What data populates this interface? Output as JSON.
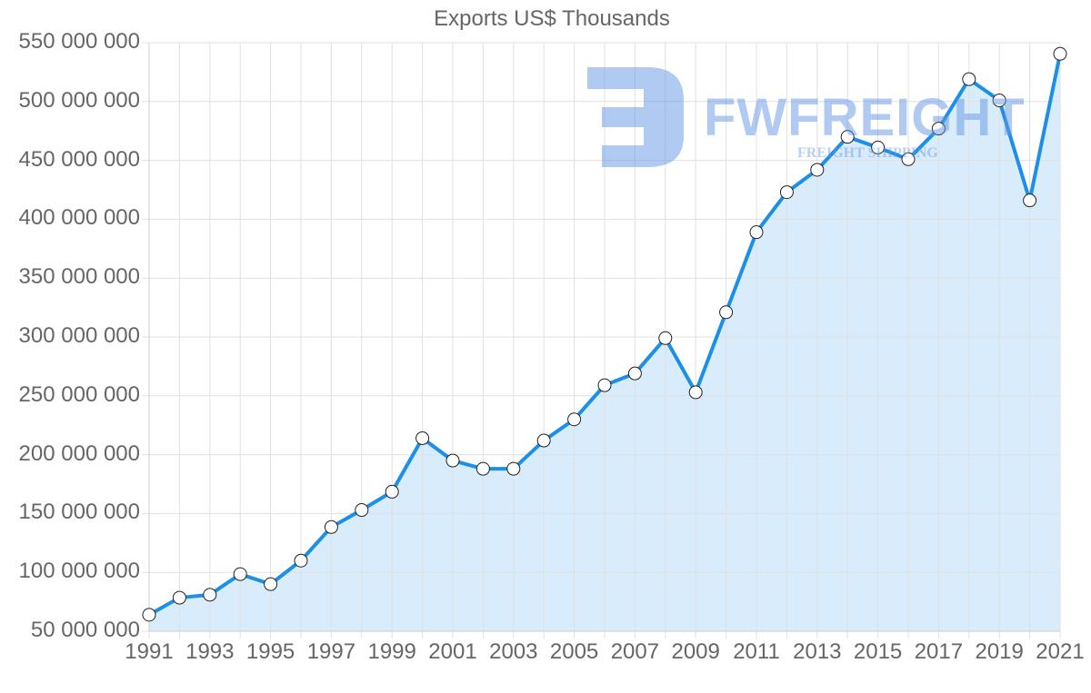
{
  "chart_data": {
    "type": "line",
    "title": "Exports US$ Thousands",
    "xlabel": "",
    "ylabel": "",
    "ylim": [
      50000000,
      550000000
    ],
    "y_ticks": [
      "550 000 000",
      "500 000 000",
      "450 000 000",
      "400 000 000",
      "350 000 000",
      "300 000 000",
      "250 000 000",
      "200 000 000",
      "150 000 000",
      "100 000 000",
      "50 000 000"
    ],
    "x_ticks": [
      "1991",
      "1993",
      "1995",
      "1997",
      "1999",
      "2001",
      "2003",
      "2005",
      "2007",
      "2009",
      "2011",
      "2013",
      "2015",
      "2017",
      "2019",
      "2021"
    ],
    "grid": true,
    "legend": "none",
    "fill": true,
    "x": [
      1991,
      1992,
      1993,
      1994,
      1995,
      1996,
      1997,
      1998,
      1999,
      2000,
      2001,
      2002,
      2003,
      2004,
      2005,
      2006,
      2007,
      2008,
      2009,
      2010,
      2011,
      2012,
      2013,
      2014,
      2015,
      2016,
      2017,
      2018,
      2019,
      2020,
      2021
    ],
    "series": [
      {
        "name": "Exports US$ Thousands",
        "values": [
          64000000,
          78500000,
          81000000,
          98500000,
          90000000,
          110000000,
          138500000,
          153000000,
          168500000,
          214000000,
          195000000,
          188000000,
          188000000,
          212000000,
          230000000,
          259000000,
          269000000,
          299000000,
          253000000,
          321000000,
          389000000,
          423000000,
          442000000,
          470000000,
          461000000,
          451000000,
          477000000,
          519000000,
          501000000,
          416000000,
          540500000
        ]
      }
    ],
    "colors": {
      "line": "#1b8fea",
      "fill": "#d9ecfb",
      "point_fill": "#ffffff",
      "point_stroke": "#222222",
      "grid": "#e0e0e0",
      "text": "#666666"
    }
  },
  "watermark": {
    "brand": "FWFREIGHT",
    "tagline": "FREIGHT SHIPPING"
  }
}
